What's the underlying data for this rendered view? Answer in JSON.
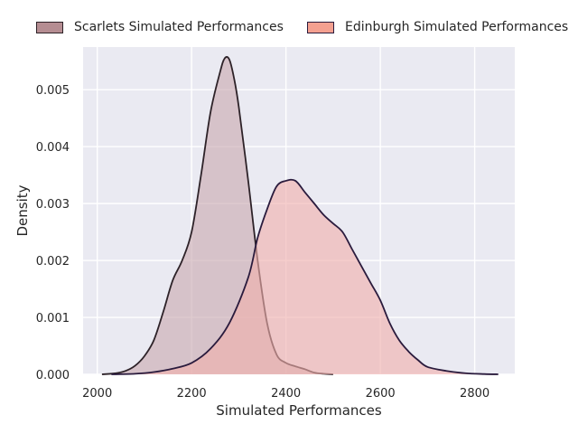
{
  "chart_data": {
    "type": "area",
    "title": "",
    "xlabel": "Simulated Performances",
    "ylabel": "Density",
    "xlim": [
      1970,
      2885
    ],
    "ylim": [
      0,
      0.00575
    ],
    "x_ticks": [
      2000,
      2200,
      2400,
      2600,
      2800
    ],
    "y_ticks": [
      0,
      0.001,
      0.002,
      0.003,
      0.004,
      0.005
    ],
    "x_tick_labels": [
      "2000",
      "2200",
      "2400",
      "2600",
      "2800"
    ],
    "y_tick_labels": [
      "0.000",
      "0.001",
      "0.002",
      "0.003",
      "0.004",
      "0.005"
    ],
    "grid": true,
    "legend_position": "top",
    "series": [
      {
        "name": "Scarlets Simulated Performances",
        "legend_color": "#b58d92",
        "fill_color": "#c9a9b0",
        "line_color": "#2d2228",
        "x": [
          2010,
          2040,
          2060,
          2080,
          2100,
          2120,
          2140,
          2160,
          2180,
          2200,
          2220,
          2240,
          2260,
          2270,
          2280,
          2290,
          2300,
          2320,
          2340,
          2360,
          2380,
          2400,
          2420,
          2440,
          2460,
          2480,
          2500
        ],
        "values": [
          0.0,
          2e-05,
          6e-05,
          0.00015,
          0.00032,
          0.0006,
          0.0011,
          0.00165,
          0.002,
          0.0025,
          0.0035,
          0.0046,
          0.0053,
          0.00555,
          0.00553,
          0.0052,
          0.0047,
          0.0034,
          0.002,
          0.0009,
          0.00035,
          0.0002,
          0.00014,
          9e-05,
          3e-05,
          1e-05,
          0.0
        ]
      },
      {
        "name": "Edinburgh Simulated Performances",
        "legend_color": "#f4a090",
        "fill_color": "#f0b0ad",
        "line_color": "#2a1b3d",
        "x": [
          2030,
          2080,
          2120,
          2160,
          2200,
          2240,
          2280,
          2320,
          2340,
          2360,
          2380,
          2400,
          2420,
          2440,
          2460,
          2480,
          2500,
          2520,
          2540,
          2560,
          2580,
          2600,
          2620,
          2640,
          2660,
          2680,
          2700,
          2740,
          2780,
          2820,
          2850
        ],
        "values": [
          0.0,
          1e-05,
          4e-05,
          0.0001,
          0.0002,
          0.00045,
          0.0009,
          0.0017,
          0.0024,
          0.0029,
          0.0033,
          0.0034,
          0.0034,
          0.0032,
          0.003,
          0.0028,
          0.00265,
          0.0025,
          0.0022,
          0.0019,
          0.0016,
          0.0013,
          0.0009,
          0.0006,
          0.0004,
          0.00025,
          0.00013,
          6e-05,
          2e-05,
          5e-06,
          0.0
        ]
      }
    ]
  }
}
